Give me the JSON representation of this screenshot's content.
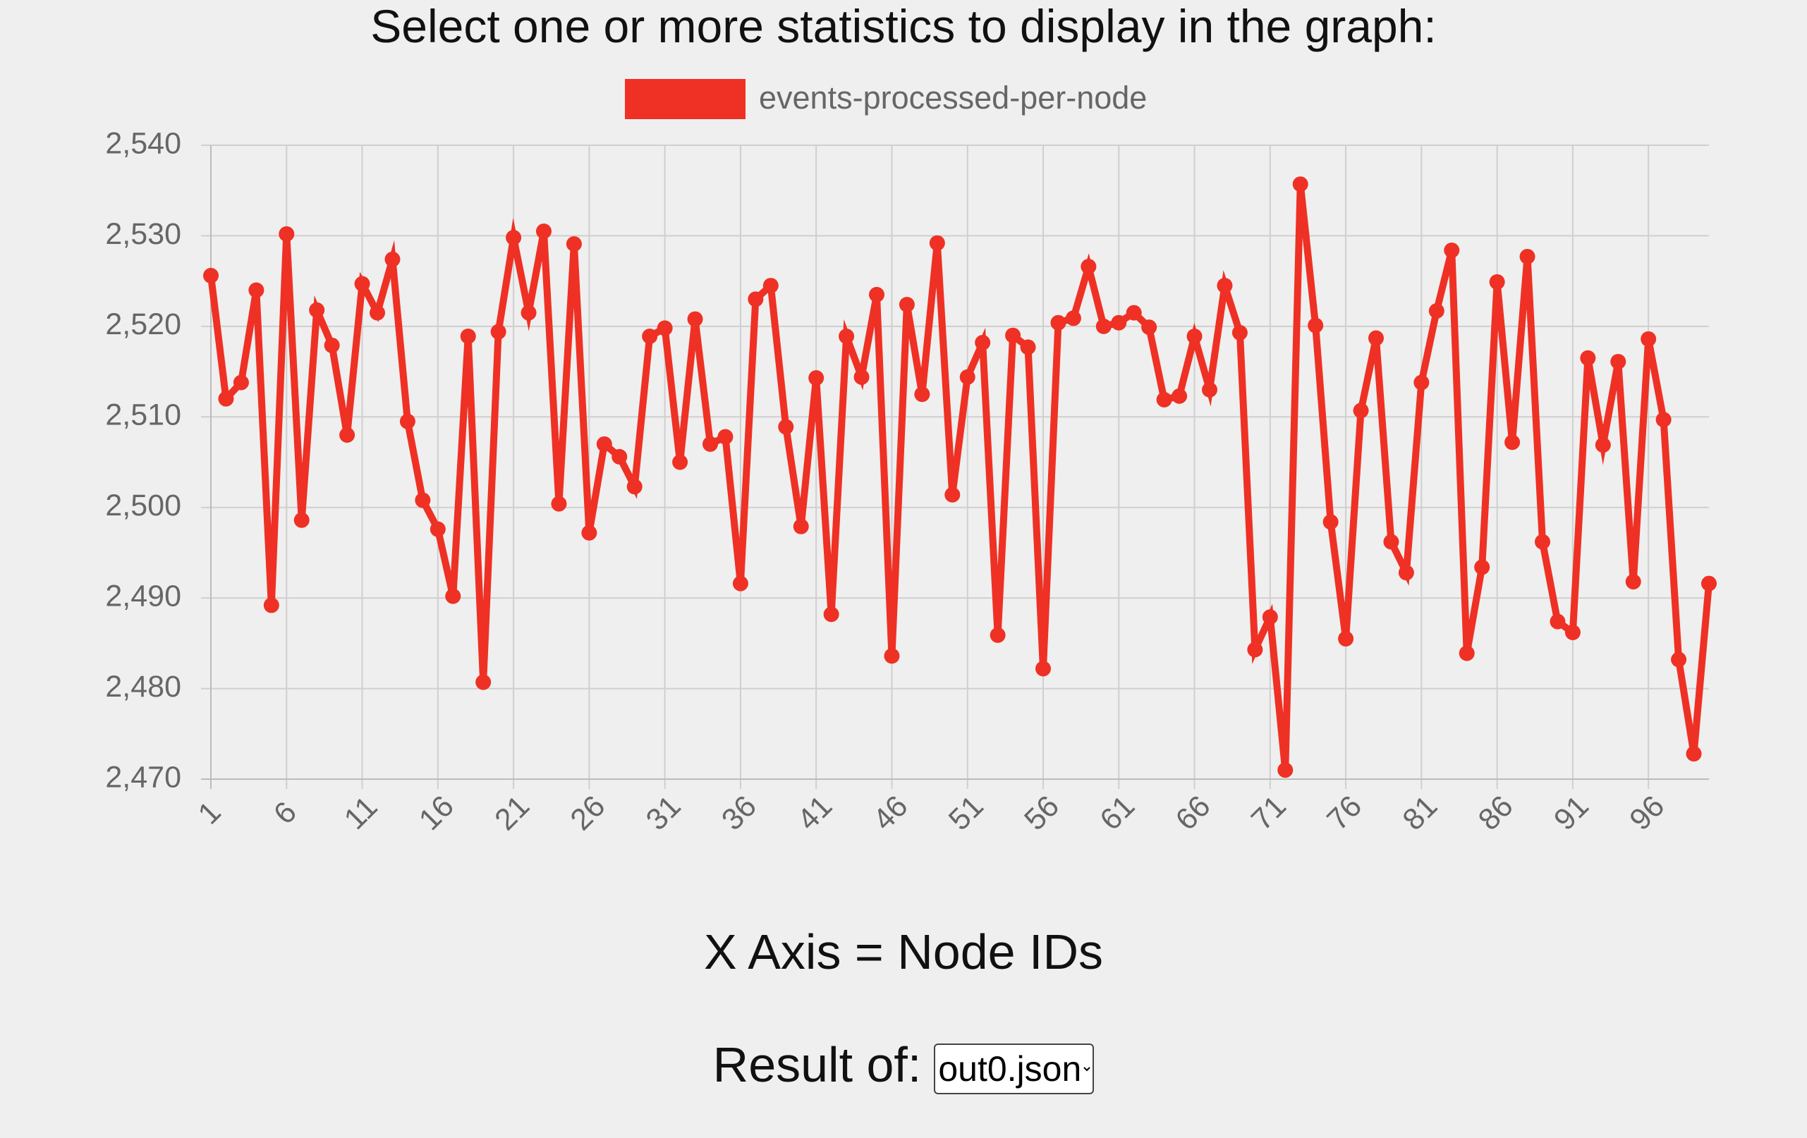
{
  "heading": "Select one or more statistics to display in the graph:",
  "chart_data": {
    "type": "line",
    "series": [
      {
        "name": "events-processed-per-node",
        "color": "#ee3124",
        "values": [
          2525.6,
          2512,
          2513.8,
          2524,
          2489.2,
          2530.2,
          2498.6,
          2521.8,
          2517.9,
          2508,
          2524.7,
          2521.5,
          2527.4,
          2509.5,
          2500.8,
          2497.6,
          2490.2,
          2518.9,
          2480.7,
          2519.4,
          2529.8,
          2521.5,
          2530.5,
          2500.4,
          2529.1,
          2497.2,
          2507,
          2505.6,
          2502.3,
          2518.9,
          2519.8,
          2505,
          2520.8,
          2507,
          2507.8,
          2491.6,
          2523,
          2524.5,
          2508.9,
          2497.9,
          2514.3,
          2488.2,
          2518.9,
          2514.4,
          2523.5,
          2483.6,
          2522.4,
          2512.5,
          2529.2,
          2501.4,
          2514.4,
          2518.2,
          2485.9,
          2519,
          2517.7,
          2482.2,
          2520.4,
          2520.9,
          2526.6,
          2520,
          2520.4,
          2521.5,
          2519.9,
          2511.9,
          2512.3,
          2518.9,
          2513,
          2524.5,
          2519.3,
          2484.3,
          2487.9,
          2471,
          2535.7,
          2520.1,
          2498.4,
          2485.5,
          2510.7,
          2518.7,
          2496.2,
          2492.8,
          2513.8,
          2521.7,
          2528.4,
          2483.9,
          2493.4,
          2524.9,
          2507.2,
          2527.7,
          2496.2,
          2487.4,
          2486.2,
          2516.5,
          2506.9,
          2516.1,
          2491.8,
          2518.6,
          2509.7,
          2483.2,
          2472.8,
          2491.6
        ]
      }
    ],
    "x": [
      1,
      2,
      3,
      4,
      5,
      6,
      7,
      8,
      9,
      10,
      11,
      12,
      13,
      14,
      15,
      16,
      17,
      18,
      19,
      20,
      21,
      22,
      23,
      24,
      25,
      26,
      27,
      28,
      29,
      30,
      31,
      32,
      33,
      34,
      35,
      36,
      37,
      38,
      39,
      40,
      41,
      42,
      43,
      44,
      45,
      46,
      47,
      48,
      49,
      50,
      51,
      52,
      53,
      54,
      55,
      56,
      57,
      58,
      59,
      60,
      61,
      62,
      63,
      64,
      65,
      66,
      67,
      68,
      69,
      70,
      71,
      72,
      73,
      74,
      75,
      76,
      77,
      78,
      79,
      80,
      81,
      82,
      83,
      84,
      85,
      86,
      87,
      88,
      89,
      90,
      91,
      92,
      93,
      94,
      95,
      96,
      97,
      98,
      99,
      100
    ],
    "xlim": [
      1,
      100
    ],
    "xticks": [
      1,
      6,
      11,
      16,
      21,
      26,
      31,
      36,
      41,
      46,
      51,
      56,
      61,
      66,
      71,
      76,
      81,
      86,
      91,
      96
    ],
    "ylim": [
      2470,
      2540
    ],
    "yticks": [
      {
        "value": 2470,
        "label": "2,470"
      },
      {
        "value": 2480,
        "label": "2,480"
      },
      {
        "value": 2490,
        "label": "2,490"
      },
      {
        "value": 2500,
        "label": "2,500"
      },
      {
        "value": 2510,
        "label": "2,510"
      },
      {
        "value": 2520,
        "label": "2,520"
      },
      {
        "value": 2530,
        "label": "2,530"
      },
      {
        "value": 2540,
        "label": "2,540"
      }
    ],
    "grid": true,
    "legend": "top"
  },
  "x_axis_note": "X Axis = Node IDs",
  "result_label": "Result of:",
  "result_options": [
    "out0.json"
  ]
}
